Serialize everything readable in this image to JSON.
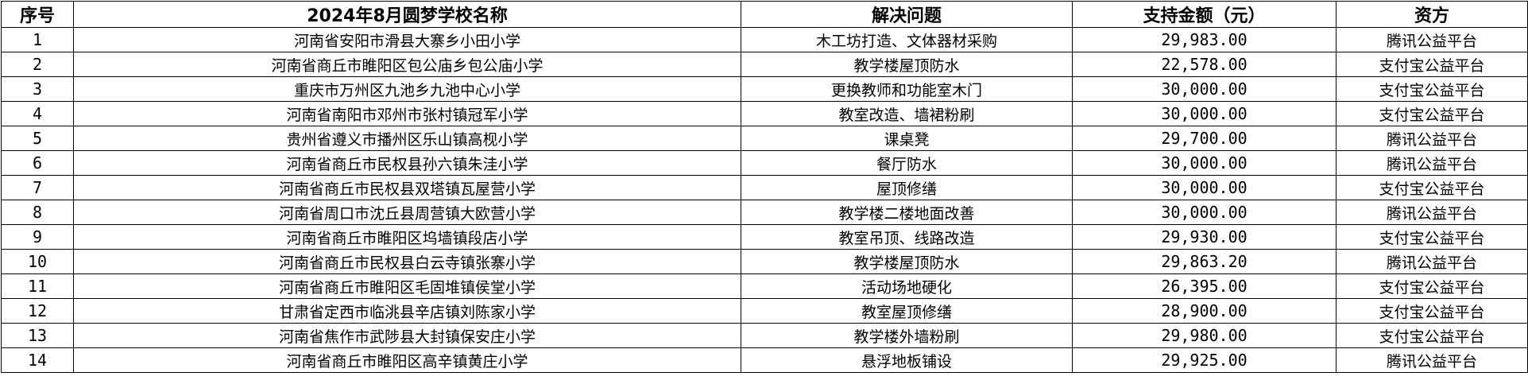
{
  "table": {
    "headers": [
      "序号",
      "2024年8月圆梦学校名称",
      "解决问题",
      "支持金额（元）",
      "资方"
    ],
    "rows": [
      [
        "1",
        "河南省安阳市滑县大寨乡小田小学",
        "木工坊打造、文体器材采购",
        "29,983.00",
        "腾讯公益平台"
      ],
      [
        "2",
        "河南省商丘市睢阳区包公庙乡包公庙小学",
        "教学楼屋顶防水",
        "22,578.00",
        "支付宝公益平台"
      ],
      [
        "3",
        "重庆市万州区九池乡九池中心小学",
        "更换教师和功能室木门",
        "30,000.00",
        "支付宝公益平台"
      ],
      [
        "4",
        "河南省南阳市邓州市张村镇冠军小学",
        "教室改造、墙裙粉刷",
        "30,000.00",
        "支付宝公益平台"
      ],
      [
        "5",
        "贵州省遵义市播州区乐山镇高枧小学",
        "课桌凳",
        "29,700.00",
        "腾讯公益平台"
      ],
      [
        "6",
        "河南省商丘市民权县孙六镇朱洼小学",
        "餐厅防水",
        "30,000.00",
        "腾讯公益平台"
      ],
      [
        "7",
        "河南省商丘市民权县双塔镇瓦屋营小学",
        "屋顶修缮",
        "30,000.00",
        "支付宝公益平台"
      ],
      [
        "8",
        "河南省周口市沈丘县周营镇大欧营小学",
        "教学楼二楼地面改善",
        "30,000.00",
        "腾讯公益平台"
      ],
      [
        "9",
        "河南省商丘市睢阳区坞墙镇段店小学",
        "教室吊顶、线路改造",
        "29,930.00",
        "支付宝公益平台"
      ],
      [
        "10",
        "河南省商丘市民权县白云寺镇张寨小学",
        "教学楼屋顶防水",
        "29,863.20",
        "腾讯公益平台"
      ],
      [
        "11",
        "河南省商丘市睢阳区毛固堆镇侯堂小学",
        "活动场地硬化",
        "26,395.00",
        "支付宝公益平台"
      ],
      [
        "12",
        "甘肃省定西市临洮县辛店镇刘陈家小学",
        "教室屋顶修缮",
        "28,900.00",
        "支付宝公益平台"
      ],
      [
        "13",
        "河南省焦作市武陟县大封镇保安庄小学",
        "教学楼外墙粉刷",
        "29,980.00",
        "支付宝公益平台"
      ],
      [
        "14",
        "河南省商丘市睢阳区高辛镇黄庄小学",
        "悬浮地板铺设",
        "29,925.00",
        "腾讯公益平台"
      ]
    ]
  }
}
